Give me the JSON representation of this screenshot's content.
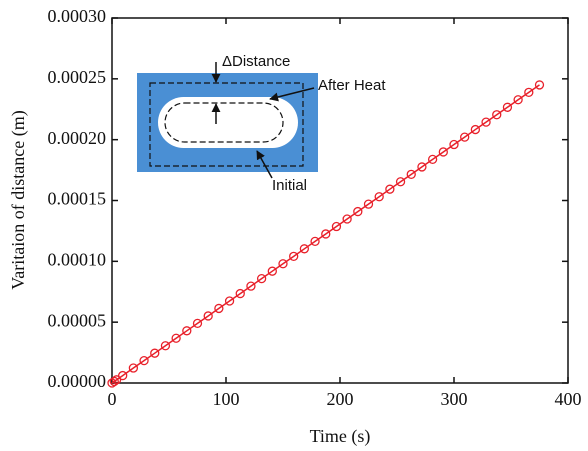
{
  "chart_data": {
    "type": "line",
    "x_label": "Time (s)",
    "y_label": "Varitaion of distance (m)",
    "annotations": [
      "ΔDistance",
      "After Heat",
      "Initial"
    ],
    "xlim": [
      0,
      400
    ],
    "xticks": [
      0,
      100,
      200,
      300,
      400
    ],
    "ylim": [
      0,
      0.0003
    ],
    "yticks": [
      {
        "value": 0,
        "label": "0.00000"
      },
      {
        "value": 5e-05,
        "label": "0.00005"
      },
      {
        "value": 0.0001,
        "label": "0.00010"
      },
      {
        "value": 0.00015,
        "label": "0.00015"
      },
      {
        "value": 0.0002,
        "label": "0.00020"
      },
      {
        "value": 0.00025,
        "label": "0.00025"
      },
      {
        "value": 0.0003,
        "label": "0.00030"
      }
    ],
    "series": [
      {
        "color": "#e8202a",
        "x": [
          0,
          2,
          4,
          9.375,
          18.75,
          28.125,
          37.5,
          46.875,
          56.25,
          65.625,
          75,
          84.375,
          93.75,
          103.125,
          112.5,
          121.875,
          131.25,
          140.625,
          150,
          159.375,
          168.75,
          178.125,
          187.5,
          196.875,
          206.25,
          215.625,
          225,
          234.375,
          243.75,
          253.125,
          262.5,
          271.875,
          281.25,
          290.625,
          300,
          309.375,
          318.75,
          328.125,
          337.5,
          346.875,
          356.25,
          365.625,
          375
        ],
        "values": [
          0,
          1.3e-06,
          2.6e-06,
          6.1e-06,
          1.23e-05,
          1.84e-05,
          2.45e-05,
          3.06e-05,
          3.68e-05,
          4.29e-05,
          4.9e-05,
          5.51e-05,
          6.13e-05,
          6.74e-05,
          7.35e-05,
          7.96e-05,
          8.58e-05,
          9.19e-05,
          9.8e-05,
          0.0001041,
          0.0001103,
          0.0001164,
          0.0001225,
          0.0001286,
          0.0001348,
          0.0001409,
          0.000147,
          0.0001531,
          0.0001593,
          0.0001654,
          0.0001715,
          0.0001776,
          0.0001838,
          0.0001899,
          0.000196,
          0.0002021,
          0.0002083,
          0.0002144,
          0.0002205,
          0.0002266,
          0.0002328,
          0.0002389,
          0.000245
        ]
      }
    ]
  }
}
